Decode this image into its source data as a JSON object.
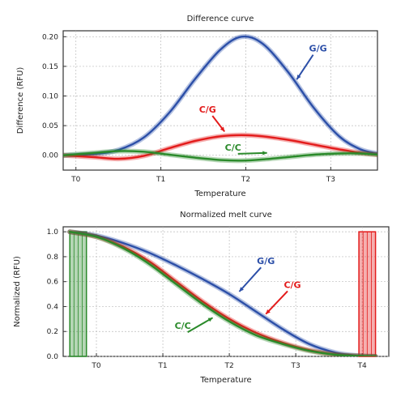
{
  "chart_data": [
    {
      "type": "line",
      "title": "Difference curve",
      "xlabel": "Temperature",
      "ylabel": "Difference (RFU)",
      "x_ticks": [
        "T0",
        "T1",
        "T2",
        "T3"
      ],
      "y_ticks": [
        "0.00",
        "0.05",
        "0.10",
        "0.15",
        "0.20"
      ],
      "xlim": [
        -0.15,
        3.55
      ],
      "ylim": [
        -0.025,
        0.21
      ],
      "grid": true,
      "series": [
        {
          "name": "G/G",
          "color": "#2c4fa8",
          "x": [
            -0.15,
            0.2,
            0.5,
            0.8,
            1.1,
            1.4,
            1.7,
            1.95,
            2.2,
            2.5,
            2.8,
            3.1,
            3.35,
            3.55
          ],
          "y": [
            0.0,
            0.002,
            0.009,
            0.03,
            0.072,
            0.128,
            0.178,
            0.2,
            0.188,
            0.14,
            0.08,
            0.032,
            0.01,
            0.003
          ]
        },
        {
          "name": "C/G",
          "color": "#e31b1b",
          "x": [
            -0.15,
            0.2,
            0.5,
            0.8,
            1.1,
            1.4,
            1.7,
            1.95,
            2.2,
            2.5,
            2.8,
            3.1,
            3.35,
            3.55
          ],
          "y": [
            0.0,
            -0.003,
            -0.006,
            -0.001,
            0.012,
            0.024,
            0.032,
            0.034,
            0.032,
            0.026,
            0.018,
            0.01,
            0.004,
            0.001
          ]
        },
        {
          "name": "C/C",
          "color": "#2a8a2a",
          "x": [
            -0.15,
            0.2,
            0.5,
            0.8,
            1.1,
            1.4,
            1.7,
            1.95,
            2.2,
            2.5,
            2.8,
            3.1,
            3.35,
            3.55
          ],
          "y": [
            0.0,
            0.004,
            0.007,
            0.006,
            0.001,
            -0.004,
            -0.008,
            -0.009,
            -0.007,
            -0.003,
            0.001,
            0.003,
            0.003,
            0.001
          ]
        }
      ],
      "annotations": [
        {
          "text": "G/G",
          "color": "#2c4fa8",
          "x": 2.85,
          "y": 0.175,
          "arrow_to": [
            2.6,
            0.128
          ]
        },
        {
          "text": "C/G",
          "color": "#e31b1b",
          "x": 1.55,
          "y": 0.072,
          "arrow_to": [
            1.75,
            0.04
          ]
        },
        {
          "text": "C/C",
          "color": "#2a8a2a",
          "x": 1.85,
          "y": 0.008,
          "arrow_to": [
            2.25,
            0.004
          ]
        }
      ]
    },
    {
      "type": "line",
      "title": "Normalized melt curve",
      "xlabel": "Temperature",
      "ylabel": "Normalized (RFU)",
      "x_ticks": [
        "T0",
        "T1",
        "T2",
        "T3",
        "T4"
      ],
      "y_ticks": [
        "0.0",
        "0.2",
        "0.4",
        "0.6",
        "0.8",
        "1.0"
      ],
      "xlim": [
        -0.5,
        4.4
      ],
      "ylim": [
        0,
        1.04
      ],
      "grid": true,
      "shaded_regions": [
        {
          "color": "#2a8a2a",
          "x": [
            -0.4,
            -0.15
          ],
          "y": [
            0,
            1.0
          ]
        },
        {
          "color": "#e31b1b",
          "x": [
            3.95,
            4.2
          ],
          "y": [
            0,
            1.0
          ]
        }
      ],
      "series": [
        {
          "name": "G/G",
          "color": "#2c4fa8",
          "x": [
            -0.4,
            0.0,
            0.4,
            0.8,
            1.2,
            1.6,
            2.0,
            2.4,
            2.8,
            3.2,
            3.6,
            3.95,
            4.2
          ],
          "y": [
            1.0,
            0.97,
            0.91,
            0.83,
            0.73,
            0.62,
            0.5,
            0.36,
            0.22,
            0.1,
            0.03,
            0.005,
            0.0
          ]
        },
        {
          "name": "C/G",
          "color": "#e31b1b",
          "x": [
            -0.4,
            0.0,
            0.4,
            0.8,
            1.2,
            1.6,
            2.0,
            2.4,
            2.8,
            3.2,
            3.6,
            3.95,
            4.2
          ],
          "y": [
            1.0,
            0.96,
            0.88,
            0.76,
            0.6,
            0.44,
            0.3,
            0.19,
            0.11,
            0.05,
            0.015,
            0.003,
            0.0
          ]
        },
        {
          "name": "C/C",
          "color": "#2a8a2a",
          "x": [
            -0.4,
            0.0,
            0.4,
            0.8,
            1.2,
            1.6,
            2.0,
            2.4,
            2.8,
            3.2,
            3.6,
            3.95,
            4.2
          ],
          "y": [
            1.0,
            0.96,
            0.87,
            0.74,
            0.58,
            0.42,
            0.28,
            0.17,
            0.1,
            0.045,
            0.013,
            0.003,
            0.0
          ]
        }
      ],
      "annotations": [
        {
          "text": "G/G",
          "color": "#2c4fa8",
          "x": 2.55,
          "y": 0.74,
          "arrow_to": [
            2.15,
            0.52
          ]
        },
        {
          "text": "C/G",
          "color": "#e31b1b",
          "x": 2.95,
          "y": 0.55,
          "arrow_to": [
            2.55,
            0.34
          ]
        },
        {
          "text": "C/C",
          "color": "#2a8a2a",
          "x": 1.3,
          "y": 0.22,
          "arrow_to": [
            1.75,
            0.31
          ]
        }
      ]
    }
  ]
}
